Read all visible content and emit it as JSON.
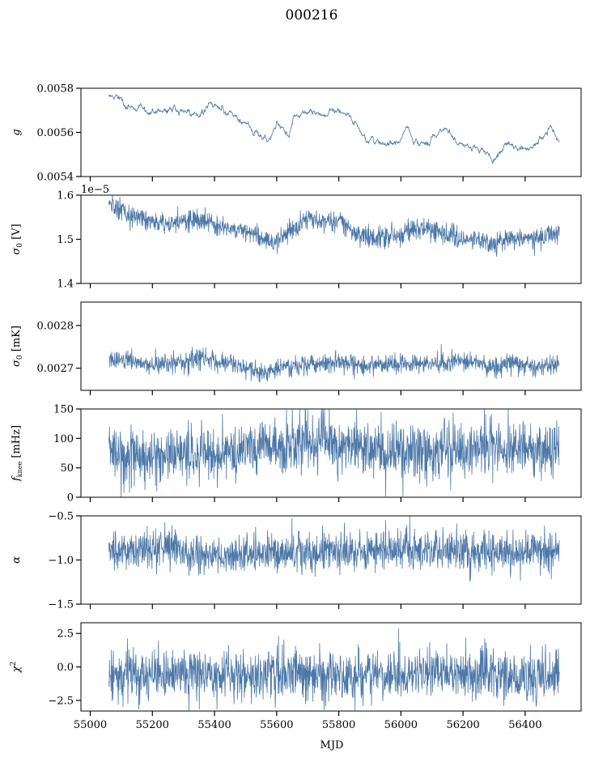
{
  "figure": {
    "title": "000216",
    "xlabel": "MJD",
    "series_color": "#4c78a8"
  },
  "chart_data": [
    {
      "type": "line",
      "ylabel_html": "g",
      "ylabel_kind": "g",
      "ylim": [
        0.0054,
        0.0058
      ],
      "yticks": [
        0.0054,
        0.0056,
        0.0058
      ],
      "ytick_labels": [
        "0.0054",
        "0.0056",
        "0.0058"
      ],
      "xlim": [
        54970,
        56580
      ],
      "xticks": [
        55000,
        55200,
        55400,
        55600,
        55800,
        56000,
        56200,
        56400
      ],
      "show_xtick_labels": false,
      "offset_text": "",
      "noise": 8e-06,
      "x": [
        55060,
        55080,
        55100,
        55140,
        55180,
        55220,
        55260,
        55300,
        55340,
        55360,
        55380,
        55400,
        55440,
        55480,
        55520,
        55560,
        55580,
        55600,
        55620,
        55640,
        55660,
        55700,
        55740,
        55780,
        55820,
        55850,
        55880,
        55920,
        55960,
        56000,
        56020,
        56040,
        56080,
        56120,
        56150,
        56180,
        56220,
        56260,
        56280,
        56300,
        56340,
        56380,
        56420,
        56460,
        56480,
        56510
      ],
      "y": [
        0.005762,
        0.005768,
        0.00574,
        0.00572,
        0.0057,
        0.00569,
        0.0057,
        0.00569,
        0.00568,
        0.005665,
        0.00572,
        0.00573,
        0.0057,
        0.00566,
        0.00562,
        0.00558,
        0.00557,
        0.00564,
        0.00562,
        0.0056,
        0.00568,
        0.00569,
        0.00568,
        0.0057,
        0.00569,
        0.00565,
        0.00558,
        0.00556,
        0.00554,
        0.00556,
        0.00562,
        0.00556,
        0.00556,
        0.0056,
        0.00561,
        0.00555,
        0.00553,
        0.00552,
        0.0055,
        0.005475,
        0.00554,
        0.00553,
        0.00553,
        0.00558,
        0.005625,
        0.00556
      ]
    },
    {
      "type": "line",
      "ylabel_html": "σ0 [V]",
      "ylabel_kind": "sigma",
      "ylabel_unit": "[V]",
      "ylim": [
        1.4e-05,
        1.6e-05
      ],
      "yticks": [
        1.4e-05,
        1.5e-05,
        1.6e-05
      ],
      "ytick_labels": [
        "1.4",
        "1.5",
        "1.6"
      ],
      "xlim": [
        54970,
        56580
      ],
      "xticks": [
        55000,
        55200,
        55400,
        55600,
        55800,
        56000,
        56200,
        56400
      ],
      "show_xtick_labels": false,
      "offset_text": "1e−5",
      "noise": 1.2e-07,
      "x": [
        55060,
        55100,
        55140,
        55200,
        55260,
        55300,
        55340,
        55400,
        55440,
        55480,
        55520,
        55560,
        55600,
        55640,
        55680,
        55720,
        55780,
        55820,
        55840,
        55860,
        55900,
        55960,
        56000,
        56040,
        56080,
        56120,
        56160,
        56200,
        56240,
        56270,
        56290,
        56320,
        56360,
        56400,
        56440,
        56480,
        56510
      ],
      "y": [
        1.575e-05,
        1.565e-05,
        1.55e-05,
        1.54e-05,
        1.535e-05,
        1.54e-05,
        1.542e-05,
        1.535e-05,
        1.525e-05,
        1.52e-05,
        1.51e-05,
        1.498e-05,
        1.495e-05,
        1.515e-05,
        1.538e-05,
        1.545e-05,
        1.542e-05,
        1.535e-05,
        1.52e-05,
        1.51e-05,
        1.505e-05,
        1.508e-05,
        1.505e-05,
        1.525e-05,
        1.525e-05,
        1.52e-05,
        1.51e-05,
        1.5e-05,
        1.505e-05,
        1.495e-05,
        1.49e-05,
        1.495e-05,
        1.5e-05,
        1.502e-05,
        1.5e-05,
        1.515e-05,
        1.515e-05
      ]
    },
    {
      "type": "line",
      "ylabel_html": "σ0 [mK]",
      "ylabel_kind": "sigma",
      "ylabel_unit": "[mK]",
      "ylim": [
        0.002648,
        0.002855
      ],
      "yticks": [
        0.0027,
        0.0028
      ],
      "ytick_labels": [
        "0.0027",
        "0.0028"
      ],
      "xlim": [
        54970,
        56580
      ],
      "xticks": [
        55000,
        55200,
        55400,
        55600,
        55800,
        56000,
        56200,
        56400
      ],
      "show_xtick_labels": false,
      "offset_text": "",
      "noise": 1.1e-05,
      "x": [
        55060,
        55120,
        55200,
        55280,
        55360,
        55440,
        55500,
        55560,
        55600,
        55660,
        55720,
        55780,
        55840,
        55880,
        55920,
        55980,
        56040,
        56100,
        56160,
        56220,
        56260,
        56300,
        56360,
        56420,
        56480,
        56510
      ],
      "y": [
        0.002722,
        0.00272,
        0.002705,
        0.002715,
        0.002725,
        0.002712,
        0.002698,
        0.002688,
        0.002698,
        0.002705,
        0.00271,
        0.002715,
        0.002715,
        0.0027,
        0.002712,
        0.002708,
        0.00271,
        0.002712,
        0.002715,
        0.002718,
        0.002712,
        0.0027,
        0.002712,
        0.002705,
        0.002705,
        0.002705
      ]
    },
    {
      "type": "line",
      "ylabel_html": "fknee [mHz]",
      "ylabel_kind": "fknee",
      "ylabel_unit": "[mHz]",
      "ylim": [
        0,
        150
      ],
      "yticks": [
        0,
        50,
        100,
        150
      ],
      "ytick_labels": [
        "0",
        "50",
        "100",
        "150"
      ],
      "xlim": [
        54970,
        56580
      ],
      "xticks": [
        55000,
        55200,
        55400,
        55600,
        55800,
        56000,
        56200,
        56400
      ],
      "show_xtick_labels": false,
      "offset_text": "",
      "noise": 24,
      "x": [
        55060,
        55200,
        55300,
        55400,
        55500,
        55560,
        55600,
        55650,
        55700,
        55800,
        55900,
        55950,
        56000,
        56100,
        56200,
        56250,
        56280,
        56320,
        56400,
        56510
      ],
      "y": [
        72,
        68,
        74,
        72,
        78,
        84,
        95,
        92,
        88,
        86,
        84,
        82,
        80,
        76,
        74,
        82,
        92,
        88,
        80,
        74
      ]
    },
    {
      "type": "line",
      "ylabel_html": "α",
      "ylabel_kind": "alpha",
      "ylim": [
        -1.5,
        -0.5
      ],
      "yticks": [
        -1.5,
        -1.0,
        -0.5
      ],
      "ytick_labels": [
        "−1.5",
        "−1.0",
        "−0.5"
      ],
      "xlim": [
        54970,
        56580
      ],
      "xticks": [
        55000,
        55200,
        55400,
        55600,
        55800,
        56000,
        56200,
        56400
      ],
      "show_xtick_labels": false,
      "offset_text": "",
      "noise": 0.11,
      "x": [
        55060,
        55200,
        55300,
        55400,
        55500,
        55600,
        55700,
        55800,
        55900,
        56000,
        56100,
        56150,
        56200,
        56300,
        56400,
        56510
      ],
      "y": [
        -0.9,
        -0.88,
        -0.9,
        -0.95,
        -0.93,
        -0.92,
        -0.9,
        -0.92,
        -0.92,
        -0.9,
        -0.9,
        -0.88,
        -0.87,
        -0.92,
        -0.9,
        -0.9
      ]
    },
    {
      "type": "line",
      "ylabel_html": "χ2",
      "ylabel_kind": "chi",
      "ylim": [
        -3.3,
        3.3
      ],
      "yticks": [
        -2.5,
        0.0,
        2.5
      ],
      "ytick_labels": [
        "−2.5",
        "0.0",
        "2.5"
      ],
      "xlim": [
        54970,
        56580
      ],
      "xticks": [
        55000,
        55200,
        55400,
        55600,
        55800,
        56000,
        56200,
        56400
      ],
      "xtick_labels": [
        "55000",
        "55200",
        "55400",
        "55600",
        "55800",
        "56000",
        "56200",
        "56400"
      ],
      "show_xtick_labels": true,
      "offset_text": "",
      "noise": 0.95,
      "x": [
        55060,
        55300,
        55600,
        55900,
        56200,
        56510
      ],
      "y": [
        -0.6,
        -0.5,
        -0.6,
        -0.6,
        -0.55,
        -0.6
      ]
    }
  ]
}
